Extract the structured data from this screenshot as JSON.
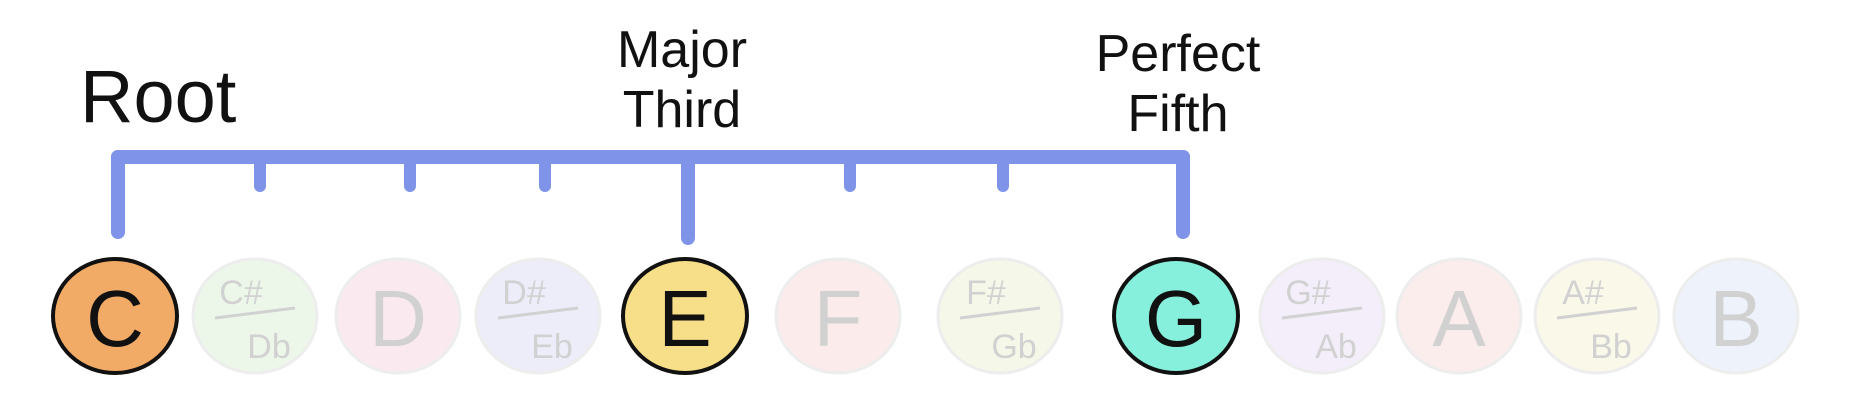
{
  "labels": {
    "root": "Root",
    "third": [
      "Major",
      "Third"
    ],
    "fifth": [
      "Perfect",
      "Fifth"
    ]
  },
  "bracket_color": "#7f94e8",
  "notes": [
    {
      "name": "C",
      "sharp": null,
      "flat": null,
      "active": true,
      "fill": "#f2ab66"
    },
    {
      "name": "C#/Db",
      "sharp": "C#",
      "flat": "Db",
      "active": false,
      "fill": "#d6efcf"
    },
    {
      "name": "D",
      "sharp": null,
      "flat": null,
      "active": false,
      "fill": "#f6d2dc"
    },
    {
      "name": "D#/Eb",
      "sharp": "D#",
      "flat": "Eb",
      "active": false,
      "fill": "#d7d8f3"
    },
    {
      "name": "E",
      "sharp": null,
      "flat": null,
      "active": true,
      "fill": "#f6df88"
    },
    {
      "name": "F",
      "sharp": null,
      "flat": null,
      "active": false,
      "fill": "#f8d6d4"
    },
    {
      "name": "F#/Gb",
      "sharp": "F#",
      "flat": "Gb",
      "active": false,
      "fill": "#e9f1cd"
    },
    {
      "name": "G",
      "sharp": null,
      "flat": null,
      "active": true,
      "fill": "#86f0dc"
    },
    {
      "name": "G#/Ab",
      "sharp": "G#",
      "flat": "Ab",
      "active": false,
      "fill": "#e6daf4"
    },
    {
      "name": "A",
      "sharp": null,
      "flat": null,
      "active": false,
      "fill": "#f8d8d4"
    },
    {
      "name": "A#/Bb",
      "sharp": "A#",
      "flat": "Bb",
      "active": false,
      "fill": "#f4f0cf"
    },
    {
      "name": "B",
      "sharp": null,
      "flat": null,
      "active": false,
      "fill": "#dbe6f8"
    }
  ]
}
